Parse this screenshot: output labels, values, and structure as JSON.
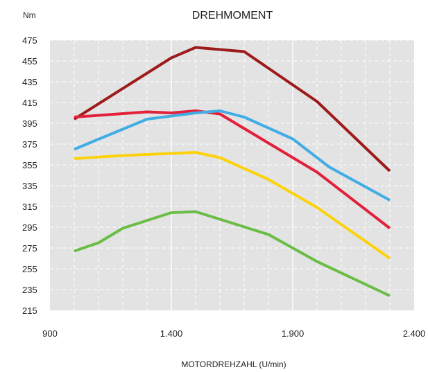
{
  "chart_data": {
    "type": "line",
    "title": "DREHMOMENT",
    "ylabel": "Nm",
    "xlabel": "MOTORDREHZAHL (U/min)",
    "xlim": [
      900,
      2400
    ],
    "ylim": [
      215,
      475
    ],
    "x_ticks": [
      900,
      1400,
      1900,
      2400
    ],
    "x_tick_labels": [
      "900",
      "1.400",
      "1.900",
      "2.400"
    ],
    "y_ticks": [
      475,
      455,
      435,
      415,
      395,
      375,
      355,
      335,
      315,
      295,
      275,
      255,
      235,
      215
    ],
    "y_tick_labels": [
      "475",
      "455",
      "435",
      "415",
      "395",
      "375",
      "355",
      "335",
      "315",
      "295",
      "275",
      "255",
      "235",
      "215"
    ],
    "grid": true,
    "plot_background": "#e3e3e4",
    "series": [
      {
        "color": "#9e1b1b",
        "points": [
          [
            1000,
            399
          ],
          [
            1400,
            458
          ],
          [
            1500,
            468
          ],
          [
            1700,
            464
          ],
          [
            2000,
            416
          ],
          [
            2300,
            349
          ]
        ]
      },
      {
        "color": "#e2203a",
        "points": [
          [
            1000,
            401
          ],
          [
            1300,
            406
          ],
          [
            1400,
            405
          ],
          [
            1500,
            407
          ],
          [
            1600,
            404
          ],
          [
            2000,
            348
          ],
          [
            2300,
            294
          ]
        ]
      },
      {
        "color": "#41ade4",
        "points": [
          [
            1000,
            370
          ],
          [
            1300,
            399
          ],
          [
            1500,
            405
          ],
          [
            1600,
            407
          ],
          [
            1700,
            401
          ],
          [
            1900,
            380
          ],
          [
            2050,
            353
          ],
          [
            2300,
            321
          ]
        ]
      },
      {
        "color": "#fcd20d",
        "points": [
          [
            1000,
            361
          ],
          [
            1200,
            364
          ],
          [
            1500,
            367
          ],
          [
            1600,
            362
          ],
          [
            1800,
            341
          ],
          [
            2000,
            314
          ],
          [
            2300,
            265
          ]
        ]
      },
      {
        "color": "#6abd45",
        "points": [
          [
            1000,
            272
          ],
          [
            1100,
            280
          ],
          [
            1200,
            294
          ],
          [
            1400,
            309
          ],
          [
            1500,
            310
          ],
          [
            1800,
            288
          ],
          [
            2000,
            262
          ],
          [
            2300,
            229
          ]
        ]
      }
    ]
  }
}
